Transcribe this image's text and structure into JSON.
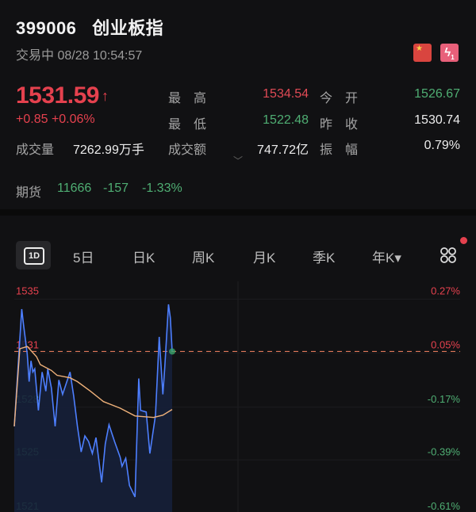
{
  "header": {
    "code": "399006",
    "name": "创业板指",
    "status": "交易中",
    "datetime": "08/28 10:54:57",
    "icons": [
      "china-flag-icon",
      "lightning-level1-icon"
    ],
    "lightning_badge": "1"
  },
  "quote": {
    "price": "1531.59",
    "direction": "up",
    "change": "+0.85",
    "change_pct": "+0.06%",
    "stats": [
      {
        "label": "最　高",
        "value": "1534.54",
        "color": "red"
      },
      {
        "label": "今　开",
        "value": "1526.67",
        "color": "green"
      },
      {
        "label": "最　低",
        "value": "1522.48",
        "color": "green"
      },
      {
        "label": "昨　收",
        "value": "1530.74",
        "color": "white"
      },
      {
        "label": "成交额",
        "value": "747.72亿",
        "color": "white"
      },
      {
        "label": "振　幅",
        "value": "0.79%",
        "color": "white"
      }
    ],
    "volume_label": "成交量",
    "volume_value": "7262.99万手"
  },
  "futures": {
    "label": "期货",
    "price": "11666",
    "change": "-157",
    "change_pct": "-1.33%"
  },
  "tabs": [
    {
      "label": "1D",
      "active": true
    },
    {
      "label": "5日"
    },
    {
      "label": "日K"
    },
    {
      "label": "周K"
    },
    {
      "label": "月K"
    },
    {
      "label": "季K"
    },
    {
      "label": "年K▾"
    }
  ],
  "colors": {
    "up": "#e5414e",
    "down": "#4fae73",
    "price_line": "#4d7fff",
    "avg_line": "#f0b27a",
    "background": "#111113"
  },
  "chart_data": {
    "type": "line",
    "prev_close": 1530.74,
    "current": 1531.59,
    "ylim": [
      1520.5,
      1535.5
    ],
    "y_ticks": [
      {
        "value": 1534.87,
        "label": "1535",
        "pct": "0.27%"
      },
      {
        "value": 1531.5,
        "label": "1531",
        "pct": "0.05%"
      },
      {
        "value": 1528.1,
        "label": "1528",
        "pct": "-0.17%"
      },
      {
        "value": 1524.8,
        "label": "1525",
        "pct": "-0.39%"
      },
      {
        "value": 1521.4,
        "label": "1521",
        "pct": "-0.61%"
      }
    ],
    "session_minutes": 240,
    "series": [
      {
        "key": "price",
        "x": [
          0,
          4,
          5,
          7,
          8,
          9,
          10,
          11,
          13,
          15,
          17,
          18,
          20,
          22,
          24,
          26,
          30,
          32,
          34,
          36,
          38,
          40,
          42,
          44,
          47,
          49,
          51,
          54,
          57,
          58,
          60,
          62,
          65,
          67,
          68,
          71,
          73,
          76,
          78,
          80,
          81,
          83,
          84,
          85
        ],
        "values": [
          1526.9,
          1534.24,
          1533.25,
          1531.4,
          1529.7,
          1531.0,
          1530.3,
          1530.5,
          1527.9,
          1530.3,
          1529.1,
          1530.5,
          1529.3,
          1526.9,
          1529.8,
          1528.9,
          1530.3,
          1528.8,
          1526.9,
          1525.3,
          1526.3,
          1525.95,
          1525.2,
          1526.2,
          1523.4,
          1525.8,
          1527.0,
          1525.95,
          1524.96,
          1524.4,
          1524.9,
          1523.2,
          1522.48,
          1529.9,
          1527.9,
          1527.8,
          1525.2,
          1527.6,
          1532.5,
          1528.9,
          1530.6,
          1534.54,
          1533.7,
          1531.59
        ]
      },
      {
        "key": "average",
        "x": [
          0,
          3,
          7,
          12,
          14,
          20,
          23,
          30,
          34,
          41,
          48,
          57,
          65,
          75,
          80,
          85
        ],
        "values": [
          1526.9,
          1531.76,
          1531.9,
          1531.26,
          1530.77,
          1530.4,
          1530.1,
          1529.94,
          1529.7,
          1529.1,
          1528.45,
          1528.04,
          1527.55,
          1527.46,
          1527.6,
          1527.96
        ]
      }
    ]
  }
}
